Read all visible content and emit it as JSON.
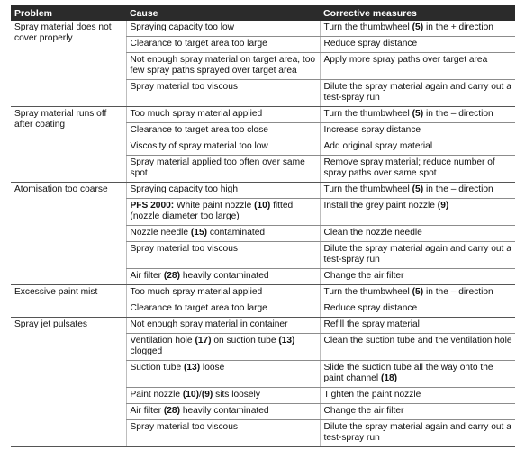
{
  "headers": [
    "Problem",
    "Cause",
    "Corrective measures"
  ],
  "groups": [
    {
      "problem": "Spray material does not cover properly",
      "rows": [
        {
          "cause": "Spraying capacity too low",
          "fix": "Turn the thumbwheel (5) in the + direction"
        },
        {
          "cause": "Clearance to target area too large",
          "fix": "Reduce spray distance"
        },
        {
          "cause": "Not enough spray material on target area, too few spray paths sprayed over target area",
          "fix": "Apply more spray paths over target area"
        },
        {
          "cause": "Spray material too viscous",
          "fix": "Dilute the spray material again and carry out a test-spray run"
        }
      ]
    },
    {
      "problem": "Spray material runs off after coating",
      "rows": [
        {
          "cause": "Too much spray material applied",
          "fix": "Turn the thumbwheel (5) in the – direction"
        },
        {
          "cause": "Clearance to target area too close",
          "fix": "Increase spray distance"
        },
        {
          "cause": "Viscosity of spray material too low",
          "fix": "Add original spray material"
        },
        {
          "cause": "Spray material applied too often over same spot",
          "fix": "Remove spray material; reduce number of spray paths over same spot"
        }
      ]
    },
    {
      "problem": "Atomisation too coarse",
      "rows": [
        {
          "cause": "Spraying capacity too high",
          "fix": "Turn the thumbwheel (5) in the – direction"
        },
        {
          "cause": "PFS 2000: White paint nozzle (10) fitted (nozzle diameter too large)",
          "fix": "Install the grey paint nozzle (9)"
        },
        {
          "cause": "Nozzle needle (15) contaminated",
          "fix": "Clean the nozzle needle"
        },
        {
          "cause": "Spray material too viscous",
          "fix": "Dilute the spray material again and carry out a test-spray run"
        },
        {
          "cause": "Air filter (28) heavily contaminated",
          "fix": "Change the air filter"
        }
      ]
    },
    {
      "problem": "Excessive paint mist",
      "rows": [
        {
          "cause": "Too much spray material applied",
          "fix": "Turn the thumbwheel (5) in the – direction"
        },
        {
          "cause": "Clearance to target area too large",
          "fix": "Reduce spray distance"
        }
      ]
    },
    {
      "problem": "Spray jet pulsates",
      "rows": [
        {
          "cause": "Not enough spray material in container",
          "fix": "Refill the spray material"
        },
        {
          "cause": "Ventilation hole (17) on suction tube (13) clogged",
          "fix": "Clean the suction tube and the ventilation hole"
        },
        {
          "cause": "Suction tube (13) loose",
          "fix": "Slide the suction tube all the way onto the paint channel (18)"
        },
        {
          "cause": "Paint nozzle (10)/(9) sits loosely",
          "fix": "Tighten the paint nozzle"
        },
        {
          "cause": "Air filter (28) heavily contaminated",
          "fix": "Change the air filter"
        },
        {
          "cause": "Spray material too viscous",
          "fix": "Dilute the spray material again and carry out a test-spray run"
        }
      ]
    }
  ]
}
